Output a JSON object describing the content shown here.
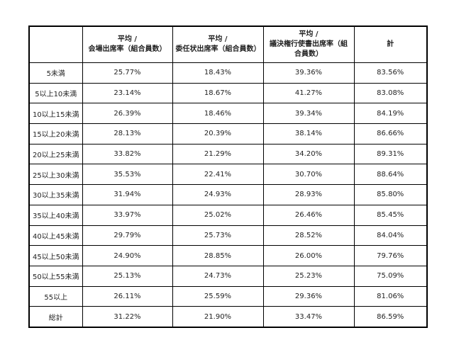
{
  "table": {
    "header": [
      "",
      [
        "平均 /",
        "会場出席率（組合員数）"
      ],
      [
        "平均 /",
        "委任状出席率（組合員数）"
      ],
      [
        "平均 /",
        "議決権行使書出席率（組合員数）"
      ],
      "計"
    ],
    "rows": [
      [
        "5未満",
        "25.77%",
        "18.43%",
        "39.36%",
        "83.56%"
      ],
      [
        "5以上10未満",
        "23.14%",
        "18.67%",
        "41.27%",
        "83.08%"
      ],
      [
        "10以上15未満",
        "26.39%",
        "18.46%",
        "39.34%",
        "84.19%"
      ],
      [
        "15以上20未満",
        "28.13%",
        "20.39%",
        "38.14%",
        "86.66%"
      ],
      [
        "20以上25未満",
        "33.82%",
        "21.29%",
        "34.20%",
        "89.31%"
      ],
      [
        "25以上30未満",
        "35.53%",
        "22.41%",
        "30.70%",
        "88.64%"
      ],
      [
        "30以上35未満",
        "31.94%",
        "24.93%",
        "28.93%",
        "85.80%"
      ],
      [
        "35以上40未満",
        "33.97%",
        "25.02%",
        "26.46%",
        "85.45%"
      ],
      [
        "40以上45未満",
        "29.79%",
        "25.73%",
        "28.52%",
        "84.04%"
      ],
      [
        "45以上50未満",
        "24.90%",
        "28.85%",
        "26.00%",
        "79.76%"
      ],
      [
        "50以上55未満",
        "25.13%",
        "24.73%",
        "25.23%",
        "75.09%"
      ],
      [
        "55以上",
        "26.11%",
        "25.59%",
        "29.36%",
        "81.06%"
      ],
      [
        "総計",
        "31.22%",
        "21.90%",
        "33.47%",
        "86.59%"
      ]
    ]
  }
}
